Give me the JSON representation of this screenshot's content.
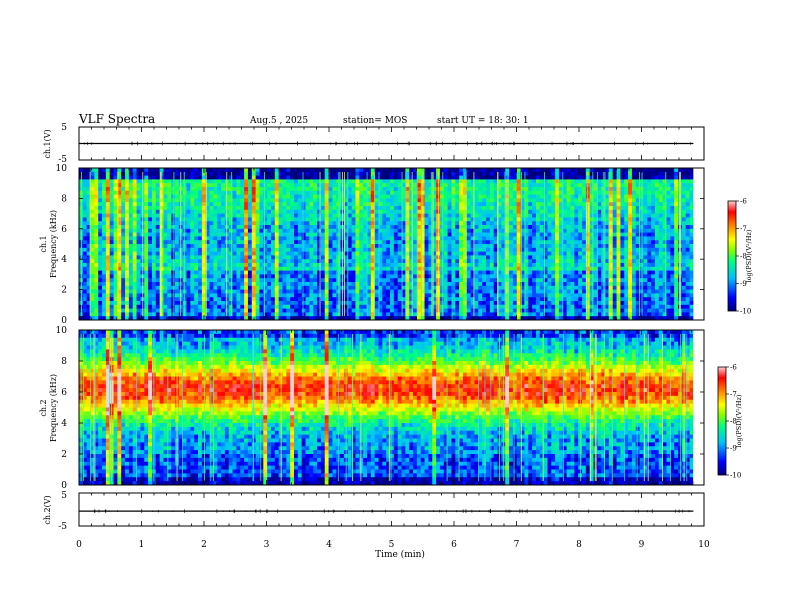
{
  "header": {
    "title": "VLF Spectra",
    "date": "Aug.5  , 2025",
    "station": "station= MOS",
    "start_ut": "start  UT =   18: 30: 1"
  },
  "chart_data": [
    {
      "type": "line",
      "name": "ch1-waveform",
      "ylabel": "ch.1(V)",
      "ylim": [
        -5,
        5
      ],
      "yticks": [
        "5",
        "-5"
      ],
      "baseline_value": 0
    },
    {
      "type": "heatmap",
      "name": "ch1-spectrogram",
      "ylabel_line1": "ch.1",
      "ylabel_line2": "Frequency  (kHz)",
      "ylim": [
        0,
        10
      ],
      "yticks": [
        "0",
        "2",
        "4",
        "6",
        "8",
        "10"
      ],
      "colorbar": {
        "ticks": [
          "-6",
          "-7",
          "-8",
          "-9",
          "-10"
        ],
        "label": "log(PSD)(V²/Hz)",
        "range": [
          -10,
          -6
        ]
      }
    },
    {
      "type": "heatmap",
      "name": "ch2-spectrogram",
      "ylabel_line1": "ch.2",
      "ylabel_line2": "Frequency  (kHz)",
      "ylim": [
        0,
        10
      ],
      "yticks": [
        "0",
        "2",
        "4",
        "6",
        "8",
        "10"
      ],
      "colorbar": {
        "ticks": [
          "-6",
          "-7",
          "-8",
          "-9",
          "-10"
        ],
        "label": "log(PSD)(V²/Hz)",
        "range": [
          -10,
          -6
        ]
      }
    },
    {
      "type": "line",
      "name": "ch2-waveform",
      "ylabel": "ch.2(V)",
      "ylim": [
        -5,
        5
      ],
      "yticks": [
        "5",
        "-5"
      ],
      "baseline_value": -0.5
    }
  ],
  "xaxis": {
    "label": "Time  (min)",
    "xlim": [
      0,
      10
    ],
    "ticks": [
      "0",
      "1",
      "2",
      "3",
      "4",
      "5",
      "6",
      "7",
      "8",
      "9",
      "10"
    ],
    "data_end": 9.83
  },
  "colors": {
    "spectrogram_scale": [
      "#00007f",
      "#0000ff",
      "#00c0ff",
      "#00ff80",
      "#80ff00",
      "#ffff00",
      "#ff8000",
      "#ff0000",
      "#ffd0d0"
    ]
  }
}
